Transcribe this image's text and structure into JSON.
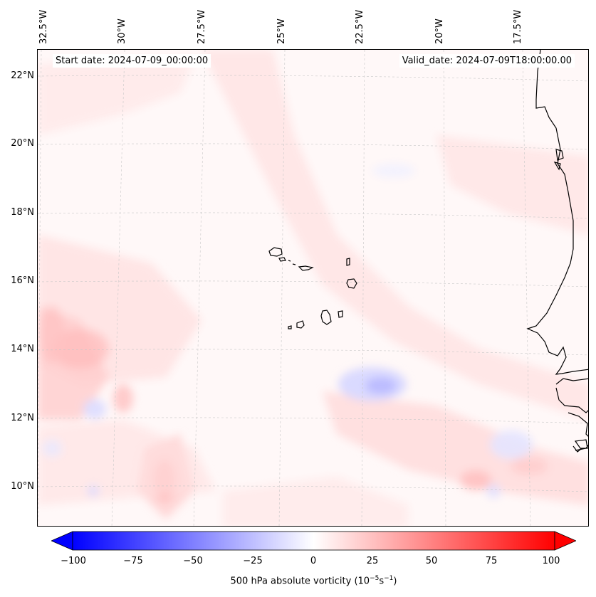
{
  "header": {
    "start_date": "Start date: 2024-07-09_00:00:00",
    "valid_date": "Valid_date: 2024-07-09T18:00:00.00"
  },
  "axes": {
    "lon_labels": [
      "32.5°W",
      "30°W",
      "27.5°W",
      "25°W",
      "22.5°W",
      "20°W",
      "17.5°W"
    ],
    "lat_labels": [
      "22°N",
      "20°N",
      "18°N",
      "16°N",
      "14°N",
      "12°N",
      "10°N"
    ]
  },
  "colorbar": {
    "ticks": [
      "−100",
      "−75",
      "−50",
      "−25",
      "0",
      "25",
      "50",
      "75",
      "100"
    ],
    "label": "500 hPa absolute vorticity (10",
    "label_exp1": "−5",
    "label_mid": "s",
    "label_exp2": "−1",
    "label_end": ")",
    "min_color": "#0000ff",
    "mid_color": "#ffffff",
    "max_color": "#ff0000"
  },
  "map": {
    "variable": "500 hPa absolute vorticity",
    "region": "Cape Verde / West Africa coast"
  }
}
